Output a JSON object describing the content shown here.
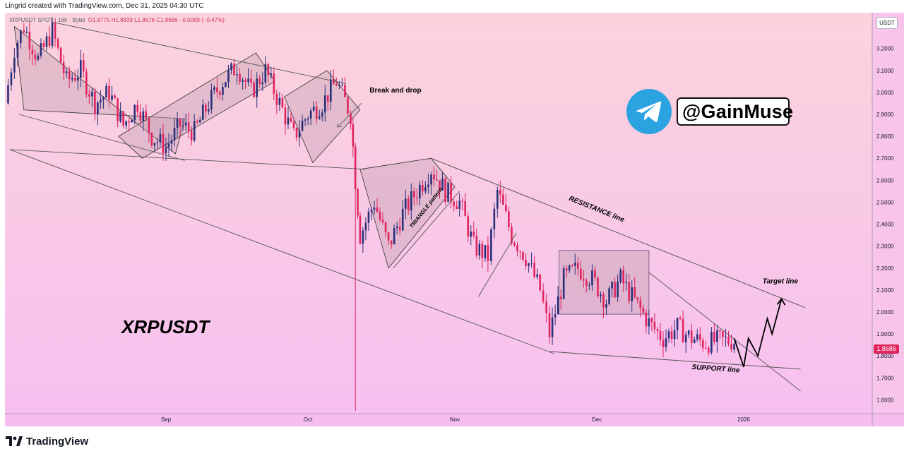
{
  "header": {
    "creator_text": "Lingrid created with TradingView.com, Dec 31, 2025 04:30 UTC"
  },
  "legend": {
    "symbol_line": "XRPUSDT SPOT · 16h · Bybit",
    "open": "O1.8775",
    "high": "H1.8839",
    "low": "L1.8676",
    "close": "C1.8686",
    "change": "−0.0089 (−0.47%)"
  },
  "price_axis": {
    "currency": "USDT",
    "current_price": "1.8686"
  },
  "watermark": {
    "handle": "@GainMuse",
    "symbol": "XRPUSDT",
    "icon": "telegram-icon"
  },
  "footer": {
    "brand": "TradingView"
  },
  "colors": {
    "up_candle": "#2a2f7a",
    "down_candle": "#e0245e",
    "background_top": "#fbd3dc",
    "background_bottom": "#f7c0f0",
    "box_fill": "#c7a3b5",
    "telegram": "#2aa3e0"
  },
  "chart_data": {
    "type": "candlestick",
    "ylim": [
      1.55,
      3.35
    ],
    "yticks": [
      "3.2000",
      "3.1000",
      "3.0000",
      "2.9000",
      "2.8000",
      "2.7000",
      "2.6000",
      "2.5000",
      "2.4000",
      "2.3000",
      "2.2000",
      "2.1000",
      "2.0000",
      "1.9000",
      "1.8000",
      "1.7000",
      "1.6000"
    ],
    "xticks": [
      {
        "label": "Sep",
        "date": "2025-09-01"
      },
      {
        "label": "Oct",
        "date": "2025-10-01"
      },
      {
        "label": "Nov",
        "date": "2025-11-01"
      },
      {
        "label": "Dec",
        "date": "2025-12-01"
      },
      {
        "label": "2026",
        "date": "2026-01-01"
      }
    ],
    "xlim": [
      "2025-07-29",
      "2026-01-28"
    ],
    "price_path": [
      [
        "2025-07-29",
        2.95
      ],
      [
        "2025-07-31",
        3.2
      ],
      [
        "2025-08-02",
        3.3
      ],
      [
        "2025-08-05",
        3.15
      ],
      [
        "2025-08-08",
        3.28
      ],
      [
        "2025-08-11",
        3.05
      ],
      [
        "2025-08-14",
        3.1
      ],
      [
        "2025-08-17",
        2.95
      ],
      [
        "2025-08-20",
        3.0
      ],
      [
        "2025-08-23",
        2.85
      ],
      [
        "2025-08-26",
        2.95
      ],
      [
        "2025-08-29",
        2.8
      ],
      [
        "2025-09-01",
        2.75
      ],
      [
        "2025-09-04",
        2.85
      ],
      [
        "2025-09-07",
        2.82
      ],
      [
        "2025-09-10",
        2.95
      ],
      [
        "2025-09-13",
        3.05
      ],
      [
        "2025-09-16",
        3.12
      ],
      [
        "2025-09-19",
        3.0
      ],
      [
        "2025-09-22",
        3.1
      ],
      [
        "2025-09-25",
        2.95
      ],
      [
        "2025-09-28",
        2.8
      ],
      [
        "2025-10-01",
        2.9
      ],
      [
        "2025-10-04",
        2.95
      ],
      [
        "2025-10-07",
        3.05
      ],
      [
        "2025-10-10",
        2.9
      ],
      [
        "2025-10-11",
        2.6
      ],
      [
        "2025-10-12",
        2.35
      ],
      [
        "2025-10-15",
        2.5
      ],
      [
        "2025-10-18",
        2.3
      ],
      [
        "2025-10-21",
        2.45
      ],
      [
        "2025-10-24",
        2.55
      ],
      [
        "2025-10-27",
        2.65
      ],
      [
        "2025-10-30",
        2.55
      ],
      [
        "2025-11-02",
        2.5
      ],
      [
        "2025-11-05",
        2.3
      ],
      [
        "2025-11-08",
        2.25
      ],
      [
        "2025-11-10",
        2.55
      ],
      [
        "2025-11-13",
        2.35
      ],
      [
        "2025-11-16",
        2.25
      ],
      [
        "2025-11-19",
        2.1
      ],
      [
        "2025-11-21",
        1.9
      ],
      [
        "2025-11-24",
        2.15
      ],
      [
        "2025-11-27",
        2.2
      ],
      [
        "2025-11-30",
        2.15
      ],
      [
        "2025-12-03",
        2.05
      ],
      [
        "2025-12-06",
        2.15
      ],
      [
        "2025-12-09",
        2.05
      ],
      [
        "2025-12-12",
        1.95
      ],
      [
        "2025-12-15",
        1.88
      ],
      [
        "2025-12-18",
        1.93
      ],
      [
        "2025-12-21",
        1.88
      ],
      [
        "2025-12-24",
        1.86
      ],
      [
        "2025-12-27",
        1.87
      ],
      [
        "2025-12-30",
        1.8686
      ]
    ],
    "projection": [
      [
        "2025-12-30",
        1.88
      ],
      [
        "2026-01-01",
        1.75
      ],
      [
        "2026-01-02",
        1.88
      ],
      [
        "2026-01-04",
        1.8
      ],
      [
        "2026-01-06",
        1.97
      ],
      [
        "2026-01-07",
        1.9
      ],
      [
        "2026-01-09",
        2.06
      ]
    ],
    "lines": [
      {
        "name": "RESISTANCE line",
        "from": [
          "2025-10-27",
          2.7
        ],
        "to": [
          "2026-01-14",
          2.02
        ]
      },
      {
        "name": "SUPPORT line",
        "from": [
          "2025-11-21",
          1.82
        ],
        "to": [
          "2026-01-13",
          1.74
        ]
      }
    ],
    "annotations": [
      {
        "text": "Break and drop",
        "date": "2025-10-14",
        "price": 3.0
      },
      {
        "text": "TRIANGLE pattern",
        "date": "2025-10-23",
        "price": 2.38
      },
      {
        "text": "RESISTANCE line",
        "date": "2025-11-25",
        "price": 2.51
      },
      {
        "text": "SUPPORT line",
        "date": "2025-12-21",
        "price": 1.74
      },
      {
        "text": "Target line",
        "date": "2026-01-05",
        "price": 2.13
      }
    ],
    "box": {
      "from": [
        "2025-11-23",
        2.28
      ],
      "to": [
        "2025-12-12",
        1.99
      ]
    }
  }
}
